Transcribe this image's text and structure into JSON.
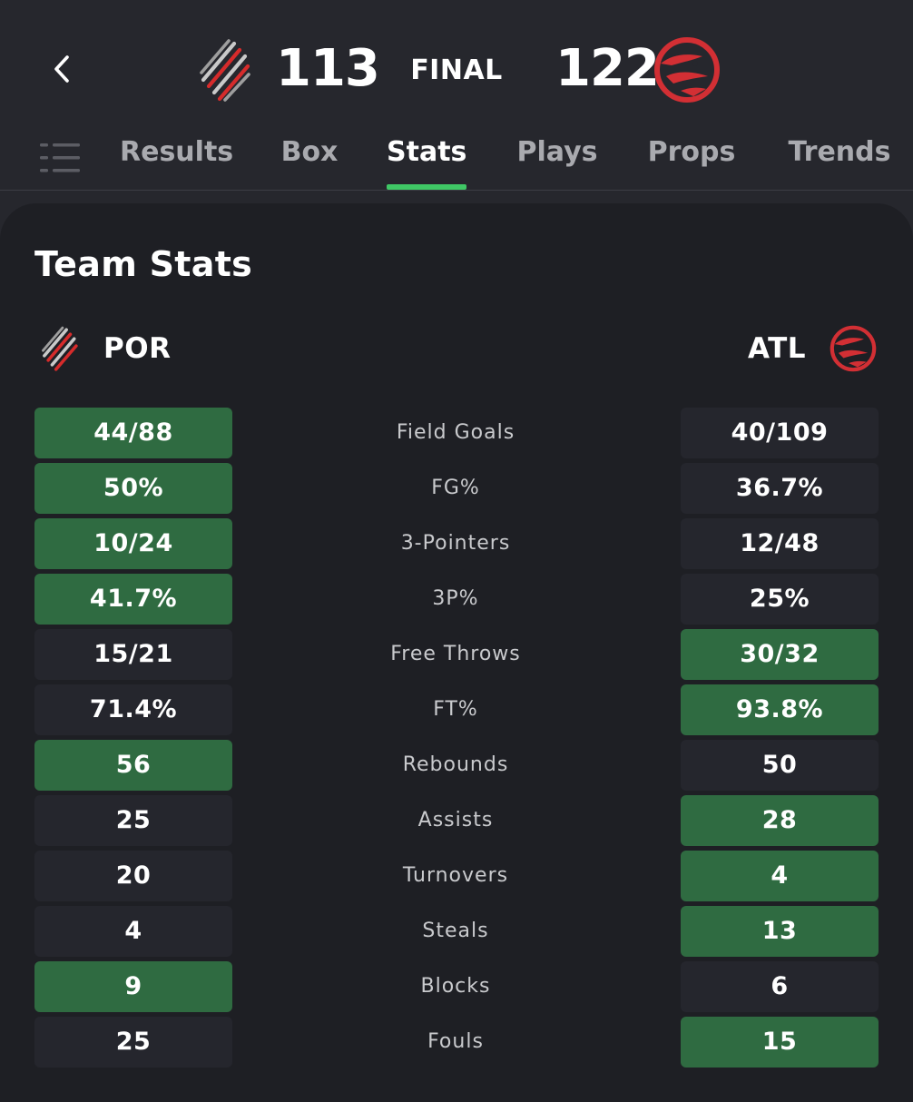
{
  "game": {
    "status": "FINAL",
    "home": {
      "abbr": "POR",
      "score": "113",
      "logo_icon": "trail-blazers-logo-icon"
    },
    "away": {
      "abbr": "ATL",
      "score": "122",
      "logo_icon": "hawks-logo-icon"
    }
  },
  "tabs": [
    {
      "label": "Results",
      "active": false
    },
    {
      "label": "Box",
      "active": false
    },
    {
      "label": "Stats",
      "active": true
    },
    {
      "label": "Plays",
      "active": false
    },
    {
      "label": "Props",
      "active": false
    },
    {
      "label": "Trends",
      "active": false
    }
  ],
  "icons": {
    "back": "chevron-left-icon",
    "menu": "list-menu-icon"
  },
  "card": {
    "title": "Team Stats"
  },
  "colors": {
    "background": "#26272d",
    "card": "#1e1f24",
    "highlight": "#2f6b41",
    "cell": "#25262d",
    "tab_underline": "#3fc765",
    "hawks_red": "#d22f34"
  },
  "stats": [
    {
      "label": "Field Goals",
      "por": "44/88",
      "atl": "40/109",
      "leader": "por"
    },
    {
      "label": "FG%",
      "por": "50%",
      "atl": "36.7%",
      "leader": "por"
    },
    {
      "label": "3-Pointers",
      "por": "10/24",
      "atl": "12/48",
      "leader": "por"
    },
    {
      "label": "3P%",
      "por": "41.7%",
      "atl": "25%",
      "leader": "por"
    },
    {
      "label": "Free Throws",
      "por": "15/21",
      "atl": "30/32",
      "leader": "atl"
    },
    {
      "label": "FT%",
      "por": "71.4%",
      "atl": "93.8%",
      "leader": "atl"
    },
    {
      "label": "Rebounds",
      "por": "56",
      "atl": "50",
      "leader": "por"
    },
    {
      "label": "Assists",
      "por": "25",
      "atl": "28",
      "leader": "atl"
    },
    {
      "label": "Turnovers",
      "por": "20",
      "atl": "4",
      "leader": "atl"
    },
    {
      "label": "Steals",
      "por": "4",
      "atl": "13",
      "leader": "atl"
    },
    {
      "label": "Blocks",
      "por": "9",
      "atl": "6",
      "leader": "por"
    },
    {
      "label": "Fouls",
      "por": "25",
      "atl": "15",
      "leader": "atl"
    }
  ]
}
